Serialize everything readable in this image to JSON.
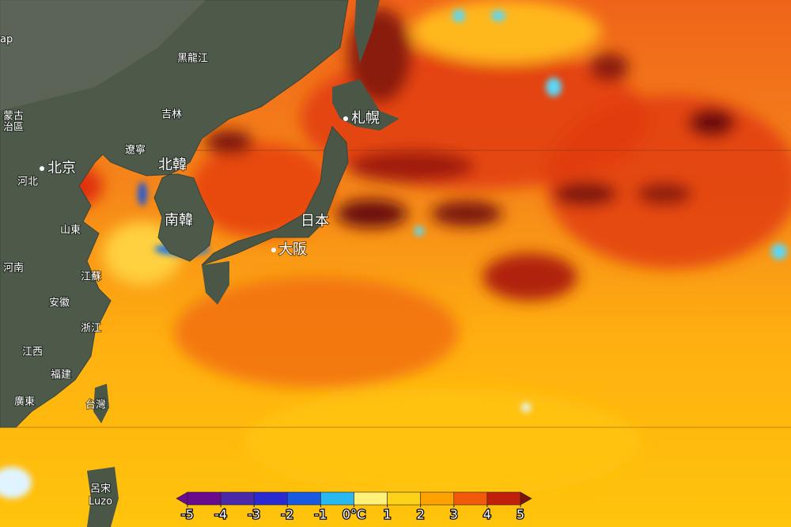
{
  "map": {
    "labels": [
      "ap",
      "黑龍江",
      "蒙古",
      "治區",
      "吉林",
      "遼寧",
      "北京",
      "河北",
      "北韓",
      "南韓",
      "山東",
      "河南",
      "江蘇",
      "安徽",
      "浙江",
      "江西",
      "福建",
      "台灣",
      "廣東",
      "呂宋",
      "Luzo",
      "札幌",
      "日本",
      "大阪"
    ]
  },
  "legend": {
    "ticks": [
      -5,
      -4,
      -3,
      -2,
      -1,
      {
        "value": 0,
        "label": "0°C"
      },
      1,
      2,
      3,
      4,
      5
    ],
    "colors": [
      "#6a0a8c",
      "#4a2aa8",
      "#2a2ad0",
      "#1a5ae0",
      "#2ab8f0",
      "#fff27a",
      "#ffd21a",
      "#ffa200",
      "#f25a0a",
      "#c0200a"
    ],
    "low_color": "#6a0a8c",
    "high_color": "#7a1408"
  }
}
